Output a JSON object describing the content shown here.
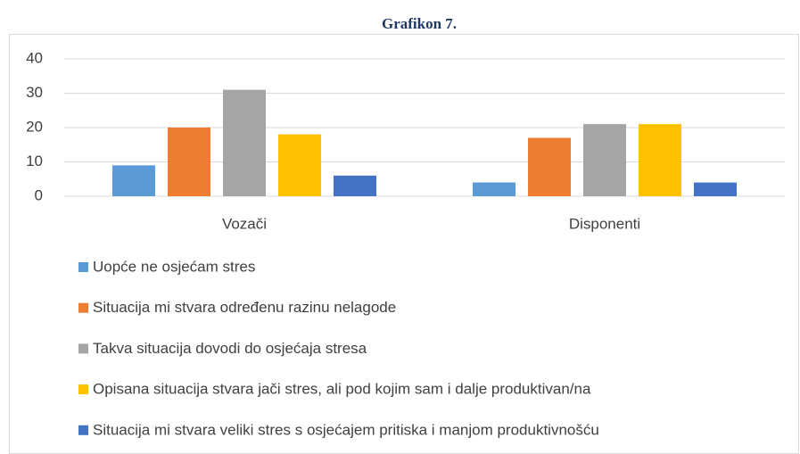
{
  "chart_data": {
    "type": "bar",
    "title": "Grafikon 7.",
    "categories": [
      "Vozači",
      "Disponenti"
    ],
    "series": [
      {
        "name": "Uopće ne osjećam stres",
        "color": "#5b9bd5",
        "values": [
          9,
          4
        ]
      },
      {
        "name": "Situacija mi stvara određenu razinu nelagode",
        "color": "#ed7d31",
        "values": [
          20,
          17
        ]
      },
      {
        "name": "Takva situacija dovodi do osjećaja stresa",
        "color": "#a5a5a5",
        "values": [
          31,
          21
        ]
      },
      {
        "name": "Opisana situacija stvara jači stres, ali pod kojim sam i dalje produktivan/na",
        "color": "#ffc000",
        "values": [
          18,
          21
        ]
      },
      {
        "name": "Situacija mi stvara veliki stres s osjećajem pritiska i manjom produktivnošću",
        "color": "#4472c4",
        "values": [
          6,
          4
        ]
      }
    ],
    "ylim": [
      0,
      40
    ],
    "yticks": [
      0,
      10,
      20,
      30,
      40
    ],
    "grid": true,
    "legend": "bottom"
  }
}
